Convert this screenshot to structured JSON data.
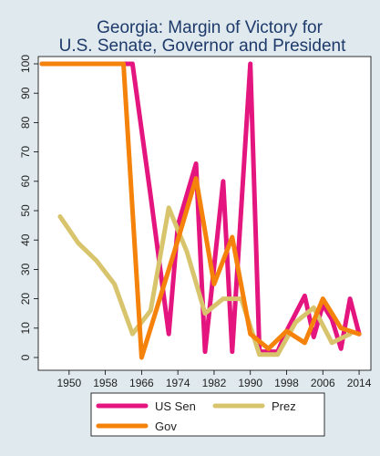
{
  "chart_data": {
    "type": "line",
    "title_lines": [
      "Georgia: Margin of Victory for",
      "U.S. Senate, Governor and President"
    ],
    "xlim": [
      1944,
      2016
    ],
    "ylim": [
      0,
      100
    ],
    "x_ticks": [
      1950,
      1958,
      1966,
      1974,
      1982,
      1990,
      1998,
      2006,
      2014
    ],
    "x_tick_labels": [
      "1950",
      "1958",
      "1966",
      "1974",
      "1982",
      "1990",
      "1998",
      "2006",
      "2014"
    ],
    "y_ticks": [
      0,
      10,
      20,
      30,
      40,
      50,
      60,
      70,
      80,
      90,
      100
    ],
    "y_tick_labels": [
      "0",
      "10",
      "20",
      "30",
      "40",
      "50",
      "60",
      "70",
      "80",
      "90",
      "100"
    ],
    "grid": false,
    "legend_position": "bottom",
    "series": [
      {
        "name": "US Sen",
        "color": "#e4157f",
        "points": [
          [
            1944,
            100
          ],
          [
            1950,
            100
          ],
          [
            1956,
            100
          ],
          [
            1962,
            100
          ],
          [
            1964,
            100
          ],
          [
            1968,
            55
          ],
          [
            1972,
            8
          ],
          [
            1974,
            45
          ],
          [
            1978,
            66
          ],
          [
            1980,
            2
          ],
          [
            1984,
            60
          ],
          [
            1986,
            2
          ],
          [
            1990,
            100
          ],
          [
            1992,
            2
          ],
          [
            1996,
            2
          ],
          [
            1998,
            9
          ],
          [
            2002,
            21
          ],
          [
            2004,
            7
          ],
          [
            2006,
            18
          ],
          [
            2008,
            13
          ],
          [
            2010,
            3
          ],
          [
            2012,
            20
          ],
          [
            2014,
            8
          ]
        ]
      },
      {
        "name": "Prez",
        "color": "#d8c46c",
        "points": [
          [
            1948,
            48
          ],
          [
            1952,
            39
          ],
          [
            1956,
            33
          ],
          [
            1960,
            25
          ],
          [
            1964,
            8
          ],
          [
            1968,
            16
          ],
          [
            1972,
            51
          ],
          [
            1976,
            36
          ],
          [
            1980,
            15
          ],
          [
            1984,
            20
          ],
          [
            1988,
            20
          ],
          [
            1992,
            1
          ],
          [
            1996,
            1
          ],
          [
            2000,
            12
          ],
          [
            2004,
            17
          ],
          [
            2008,
            5
          ],
          [
            2012,
            8
          ]
        ]
      },
      {
        "name": "Gov",
        "color": "#f5820a",
        "points": [
          [
            1944,
            100
          ],
          [
            1950,
            100
          ],
          [
            1954,
            100
          ],
          [
            1958,
            100
          ],
          [
            1962,
            100
          ],
          [
            1966,
            0
          ],
          [
            1970,
            20
          ],
          [
            1974,
            40
          ],
          [
            1978,
            61
          ],
          [
            1982,
            25
          ],
          [
            1986,
            41
          ],
          [
            1990,
            8
          ],
          [
            1994,
            3
          ],
          [
            1998,
            9
          ],
          [
            2002,
            5
          ],
          [
            2006,
            20
          ],
          [
            2010,
            10
          ],
          [
            2014,
            8
          ]
        ]
      }
    ]
  }
}
